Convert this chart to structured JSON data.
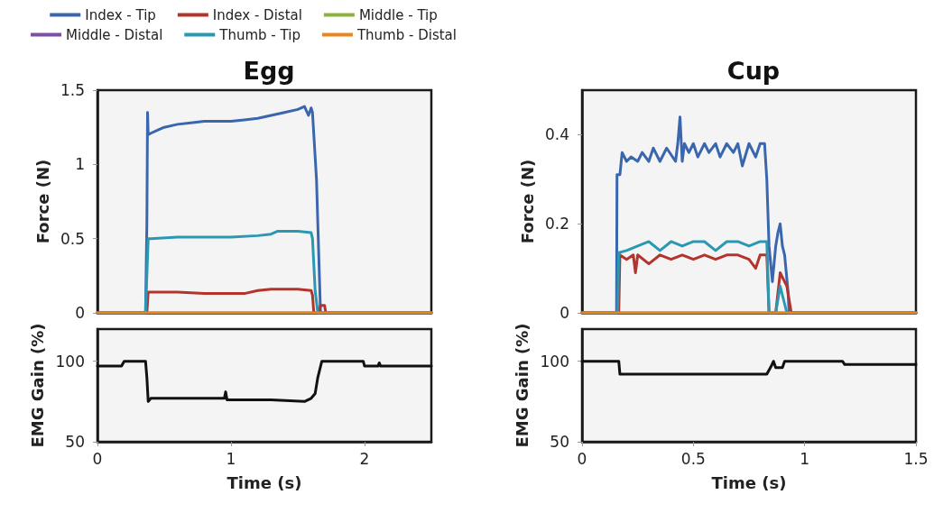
{
  "chart_data": [
    {
      "type": "line",
      "title": "Egg",
      "ylabel": "Force (N)",
      "xlim": [
        0,
        2.5
      ],
      "ylim": [
        0,
        1.5
      ],
      "yticks": [
        0,
        0.5,
        1,
        1.5
      ],
      "tick_labels": "y",
      "grid": false,
      "legend": "top",
      "marker": "none",
      "line_style": "solid",
      "series": [
        {
          "name": "Index - Tip",
          "color": "#3a66ad",
          "x": [
            0,
            0.36,
            0.37,
            0.375,
            0.38,
            0.4,
            0.45,
            0.5,
            0.6,
            0.7,
            0.8,
            0.9,
            1.0,
            1.1,
            1.2,
            1.3,
            1.4,
            1.5,
            1.55,
            1.58,
            1.6,
            1.61,
            1.62,
            1.64,
            1.67,
            1.7,
            2.5
          ],
          "values": [
            0,
            0,
            0.6,
            1.35,
            1.2,
            1.21,
            1.23,
            1.25,
            1.27,
            1.28,
            1.29,
            1.29,
            1.29,
            1.3,
            1.31,
            1.33,
            1.35,
            1.37,
            1.39,
            1.33,
            1.38,
            1.35,
            1.2,
            0.9,
            0,
            0,
            0
          ]
        },
        {
          "name": "Index - Distal",
          "color": "#b3342c",
          "x": [
            0,
            0.37,
            0.38,
            0.6,
            0.8,
            1.0,
            1.1,
            1.2,
            1.3,
            1.5,
            1.6,
            1.61,
            1.62,
            1.66,
            1.67,
            1.7,
            1.71,
            2.5
          ],
          "values": [
            0,
            0,
            0.14,
            0.14,
            0.13,
            0.13,
            0.13,
            0.15,
            0.16,
            0.16,
            0.15,
            0.12,
            0,
            0,
            0.05,
            0.05,
            0,
            0
          ]
        },
        {
          "name": "Middle - Tip",
          "color": "#8db33b"
        },
        {
          "name": "Middle - Distal",
          "color": "#7b4fa3"
        },
        {
          "name": "Thumb - Tip",
          "color": "#2a98b3",
          "x": [
            0,
            0.36,
            0.38,
            0.4,
            0.6,
            0.8,
            1.0,
            1.2,
            1.3,
            1.35,
            1.5,
            1.6,
            1.61,
            1.63,
            1.65,
            2.5
          ],
          "values": [
            0,
            0,
            0.5,
            0.5,
            0.51,
            0.51,
            0.51,
            0.52,
            0.53,
            0.55,
            0.55,
            0.54,
            0.5,
            0.15,
            0,
            0
          ]
        },
        {
          "name": "Thumb - Distal",
          "color": "#e8861e",
          "x": [
            0,
            2.5
          ],
          "values": [
            0,
            0
          ]
        }
      ]
    },
    {
      "type": "line",
      "xlabel": "Time (s)",
      "ylabel": "EMG Gain (%)",
      "xlim": [
        0,
        2.5
      ],
      "xticks": [
        0,
        1,
        2
      ],
      "ylim": [
        50,
        120
      ],
      "yticks": [
        50,
        100
      ],
      "grid": false,
      "marker": "none",
      "line_style": "solid",
      "series": [
        {
          "color": "#111111",
          "x": [
            0,
            0.18,
            0.2,
            0.36,
            0.37,
            0.38,
            0.4,
            0.6,
            0.9,
            0.95,
            0.96,
            0.97,
            1.0,
            1.3,
            1.55,
            1.6,
            1.63,
            1.65,
            1.68,
            1.99,
            2.0,
            2.1,
            2.11,
            2.12,
            2.5
          ],
          "values": [
            97,
            97,
            100,
            100,
            90,
            75,
            77,
            77,
            77,
            77,
            81,
            76,
            76,
            76,
            75,
            77,
            80,
            90,
            100,
            100,
            97,
            97,
            99,
            97,
            97
          ]
        }
      ]
    },
    {
      "type": "line",
      "title": "Cup",
      "ylabel": "Force (N)",
      "xlim": [
        0,
        1.5
      ],
      "ylim": [
        0,
        0.5
      ],
      "yticks": [
        0,
        0.2,
        0.4
      ],
      "tick_labels": "y",
      "grid": false,
      "marker": "none",
      "line_style": "solid",
      "series": [
        {
          "color": "#3a66ad",
          "x": [
            0,
            0.155,
            0.157,
            0.17,
            0.18,
            0.2,
            0.22,
            0.25,
            0.27,
            0.3,
            0.32,
            0.35,
            0.38,
            0.42,
            0.43,
            0.44,
            0.45,
            0.46,
            0.48,
            0.5,
            0.52,
            0.55,
            0.57,
            0.6,
            0.62,
            0.65,
            0.68,
            0.7,
            0.72,
            0.75,
            0.78,
            0.8,
            0.82,
            0.83,
            0.84,
            0.855,
            0.87,
            0.88,
            0.89,
            0.9,
            0.91,
            0.925,
            0.93,
            1.5
          ],
          "values": [
            0,
            0,
            0.31,
            0.31,
            0.36,
            0.34,
            0.35,
            0.34,
            0.36,
            0.34,
            0.37,
            0.34,
            0.37,
            0.34,
            0.38,
            0.44,
            0.34,
            0.38,
            0.36,
            0.38,
            0.35,
            0.38,
            0.36,
            0.38,
            0.35,
            0.38,
            0.36,
            0.38,
            0.33,
            0.38,
            0.35,
            0.38,
            0.38,
            0.3,
            0.15,
            0.07,
            0.15,
            0.18,
            0.2,
            0.15,
            0.13,
            0.05,
            0,
            0
          ]
        },
        {
          "color": "#b3342c",
          "x": [
            0,
            0.165,
            0.17,
            0.2,
            0.23,
            0.24,
            0.25,
            0.3,
            0.35,
            0.4,
            0.45,
            0.5,
            0.55,
            0.6,
            0.65,
            0.7,
            0.75,
            0.78,
            0.8,
            0.83,
            0.84,
            0.87,
            0.89,
            0.9,
            0.92,
            0.94,
            1.5
          ],
          "values": [
            0,
            0,
            0.13,
            0.12,
            0.13,
            0.09,
            0.13,
            0.11,
            0.13,
            0.12,
            0.13,
            0.12,
            0.13,
            0.12,
            0.13,
            0.13,
            0.12,
            0.1,
            0.13,
            0.13,
            0,
            0,
            0.09,
            0.08,
            0.06,
            0,
            0
          ]
        },
        {
          "color": "#2a98b3",
          "x": [
            0,
            0.16,
            0.165,
            0.2,
            0.25,
            0.3,
            0.35,
            0.4,
            0.45,
            0.5,
            0.55,
            0.6,
            0.65,
            0.7,
            0.75,
            0.8,
            0.83,
            0.84,
            0.87,
            0.89,
            0.9,
            0.92,
            1.5
          ],
          "values": [
            0,
            0,
            0.135,
            0.14,
            0.15,
            0.16,
            0.14,
            0.16,
            0.15,
            0.16,
            0.16,
            0.14,
            0.16,
            0.16,
            0.15,
            0.16,
            0.16,
            0,
            0,
            0.06,
            0.04,
            0,
            0
          ]
        },
        {
          "color": "#e8861e",
          "x": [
            0,
            1.5
          ],
          "values": [
            0,
            0
          ]
        }
      ]
    },
    {
      "type": "line",
      "xlabel": "Time (s)",
      "ylabel": "EMG Gain (%)",
      "xlim": [
        0,
        1.5
      ],
      "xticks": [
        0,
        0.5,
        1,
        1.5
      ],
      "ylim": [
        50,
        120
      ],
      "yticks": [
        50,
        100
      ],
      "grid": false,
      "marker": "none",
      "line_style": "solid",
      "series": [
        {
          "color": "#111111",
          "x": [
            0,
            0.165,
            0.17,
            0.3,
            0.5,
            0.7,
            0.83,
            0.85,
            0.86,
            0.87,
            0.88,
            0.9,
            0.91,
            0.92,
            1.17,
            1.18,
            1.5
          ],
          "values": [
            100,
            100,
            92,
            92,
            92,
            92,
            92,
            97,
            100,
            96,
            96,
            96,
            100,
            100,
            100,
            98,
            98
          ]
        }
      ]
    }
  ]
}
